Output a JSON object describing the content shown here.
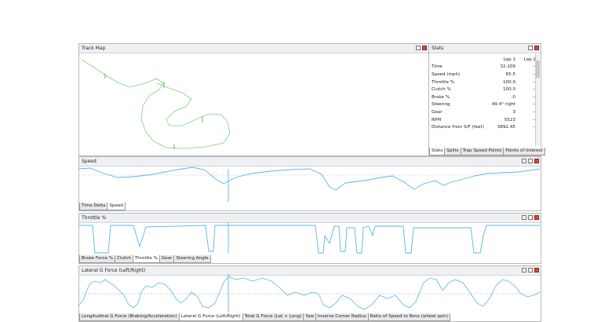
{
  "track_map": {
    "title": "Track Map"
  },
  "stats": {
    "title": "Stats",
    "columns": [
      "Lap 1",
      "Lap 2"
    ],
    "rows": [
      [
        "Time",
        "32.209",
        "--"
      ],
      [
        "Speed (mph)",
        "65.5",
        "--"
      ],
      [
        "Throttle %",
        "100.0",
        "--"
      ],
      [
        "Clutch %",
        "100.0",
        "--"
      ],
      [
        "Brake %",
        ".0",
        "--"
      ],
      [
        "Steering",
        "49.4° right",
        "--"
      ],
      [
        "Gear",
        "3",
        "--"
      ],
      [
        "RPM",
        "5523",
        "--"
      ],
      [
        "Distance from S/F (feet)",
        "3892.45",
        "--"
      ]
    ],
    "tabs": [
      "Stats",
      "Splits",
      "Trap Speed Points",
      "Points of Interest"
    ]
  },
  "panels": [
    {
      "title": "Speed",
      "tabs": [
        "Time Delta",
        "Speed"
      ]
    },
    {
      "title": "Throttle %",
      "tabs": [
        "Brake Force %",
        "Clutch",
        "Throttle %",
        "Gear",
        "Steering Angle"
      ]
    },
    {
      "title": "Lateral G Force (Left/Right)",
      "tabs": [
        "Longitudinal G Force (Braking/Acceleration)",
        "Lateral G Force (Left/Right)",
        "Total G Force (Lat + Long)",
        "Yaw",
        "Inverse Corner Radius",
        "Ratio of Speed to Revs (wheel spin)"
      ]
    }
  ]
}
